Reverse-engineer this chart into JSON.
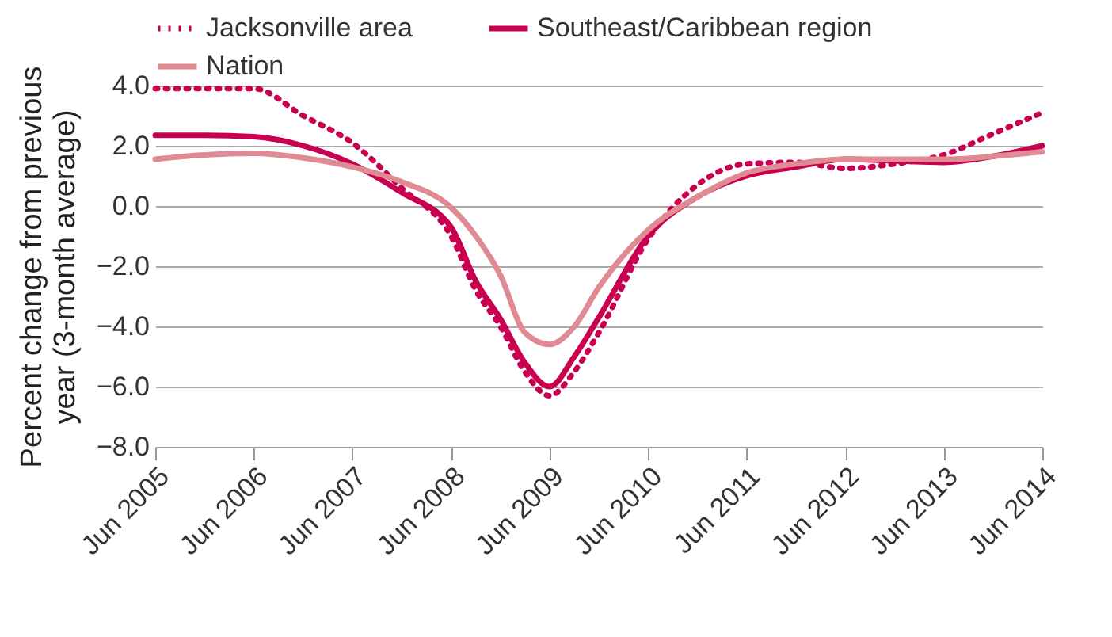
{
  "chart_data": {
    "type": "line",
    "ylabel": "Percent change from previous year (3-month average)",
    "x": [
      "2005-06",
      "2005-12",
      "2006-06",
      "2006-12",
      "2007-06",
      "2007-12",
      "2008-06",
      "2008-09",
      "2008-12",
      "2009-03",
      "2009-06",
      "2009-09",
      "2009-12",
      "2010-06",
      "2010-12",
      "2011-06",
      "2011-12",
      "2012-06",
      "2012-12",
      "2013-06",
      "2013-12",
      "2014-06"
    ],
    "series": [
      {
        "name": "Jacksonville area",
        "color": "#c8004f",
        "line_style": "dotted",
        "values": [
          3.9,
          3.9,
          3.9,
          3.0,
          2.1,
          0.6,
          -1.0,
          -2.8,
          -4.0,
          -5.5,
          -6.3,
          -5.5,
          -4.2,
          -1.1,
          0.7,
          1.4,
          1.45,
          1.25,
          1.4,
          1.7,
          2.4,
          3.1
        ]
      },
      {
        "name": "Southeast/Caribbean region",
        "color": "#c8004f",
        "line_style": "solid",
        "values": [
          2.35,
          2.35,
          2.3,
          2.0,
          1.4,
          0.45,
          -0.7,
          -2.5,
          -3.75,
          -5.2,
          -6.0,
          -5.0,
          -3.7,
          -1.0,
          0.3,
          1.0,
          1.3,
          1.55,
          1.5,
          1.45,
          1.65,
          2.0
        ]
      },
      {
        "name": "Nation",
        "color": "#e08a94",
        "line_style": "solid",
        "values": [
          1.55,
          1.7,
          1.75,
          1.6,
          1.3,
          0.8,
          -0.05,
          -1.0,
          -2.3,
          -4.2,
          -4.6,
          -4.0,
          -2.7,
          -0.8,
          0.3,
          1.1,
          1.4,
          1.55,
          1.55,
          1.55,
          1.65,
          1.8
        ]
      }
    ],
    "xlim": [
      "2005-06",
      "2014-06"
    ],
    "xticks": [
      {
        "value": "2005-06",
        "label": "Jun 2005"
      },
      {
        "value": "2006-06",
        "label": "Jun 2006"
      },
      {
        "value": "2007-06",
        "label": "Jun 2007"
      },
      {
        "value": "2008-06",
        "label": "Jun 2008"
      },
      {
        "value": "2009-06",
        "label": "Jun 2009"
      },
      {
        "value": "2010-06",
        "label": "Jun 2010"
      },
      {
        "value": "2011-06",
        "label": "Jun 2011"
      },
      {
        "value": "2012-06",
        "label": "Jun 2012"
      },
      {
        "value": "2013-06",
        "label": "Jun 2013"
      },
      {
        "value": "2014-06",
        "label": "Jun 2014"
      }
    ],
    "ylim": [
      -8,
      4
    ],
    "yticks": [
      {
        "value": -8,
        "label": "−8.0"
      },
      {
        "value": -6,
        "label": "−6.0"
      },
      {
        "value": -4,
        "label": "−4.0"
      },
      {
        "value": -2,
        "label": "−2.0"
      },
      {
        "value": 0,
        "label": "0.0"
      },
      {
        "value": 2,
        "label": "2.0"
      },
      {
        "value": 4,
        "label": "4.0"
      }
    ],
    "grid": "y",
    "legend": "top",
    "marker": "none"
  }
}
